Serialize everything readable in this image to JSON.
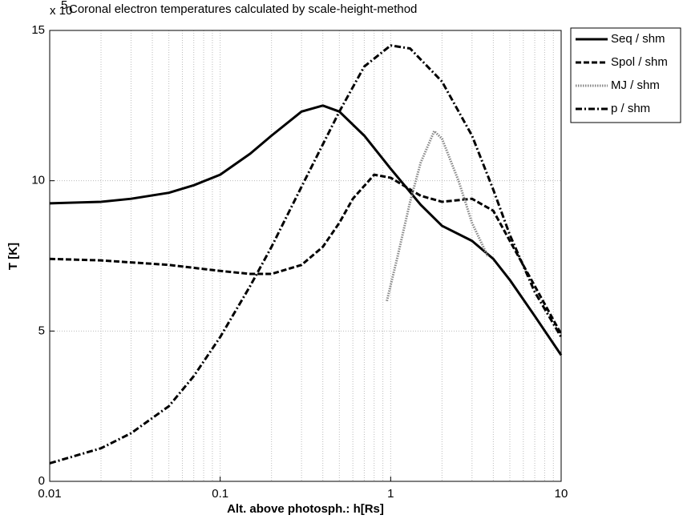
{
  "chart_data": {
    "type": "line",
    "title": "Coronal electron temperatures calculated by scale-height-method",
    "axis_multiplier": {
      "base": "x 10",
      "exponent": "5"
    },
    "xlabel": "Alt. above photosph.: h[Rs]",
    "ylabel": "T [K]",
    "xscale": "log",
    "xlim": [
      0.01,
      10
    ],
    "ylim": [
      0,
      15
    ],
    "xticks": [
      0.01,
      0.1,
      1,
      10
    ],
    "xminorticks": [
      0.02,
      0.03,
      0.04,
      0.05,
      0.06,
      0.07,
      0.08,
      0.09,
      0.2,
      0.3,
      0.4,
      0.5,
      0.6,
      0.7,
      0.8,
      0.9,
      2,
      3,
      4,
      5,
      6,
      7,
      8,
      9
    ],
    "yticks": [
      0,
      5,
      10,
      15
    ],
    "grid": true,
    "legend": "outside-right",
    "series": [
      {
        "name": "Seq / shm",
        "color": "#000000",
        "linestyle": "solid",
        "x": [
          0.01,
          0.02,
          0.03,
          0.05,
          0.07,
          0.1,
          0.15,
          0.2,
          0.3,
          0.4,
          0.5,
          0.7,
          1,
          1.5,
          2,
          3,
          4,
          5,
          7,
          10
        ],
        "values": [
          9.25,
          9.3,
          9.4,
          9.6,
          9.85,
          10.2,
          10.9,
          11.5,
          12.3,
          12.5,
          12.3,
          11.5,
          10.4,
          9.2,
          8.5,
          8.0,
          7.4,
          6.7,
          5.5,
          4.2
        ]
      },
      {
        "name": "Spol / shm",
        "color": "#000000",
        "linestyle": "dashed",
        "x": [
          0.01,
          0.02,
          0.05,
          0.1,
          0.15,
          0.2,
          0.3,
          0.4,
          0.5,
          0.6,
          0.8,
          1,
          1.5,
          2,
          3,
          4,
          5,
          7,
          10
        ],
        "values": [
          7.4,
          7.35,
          7.2,
          7.0,
          6.9,
          6.9,
          7.2,
          7.8,
          8.6,
          9.4,
          10.2,
          10.1,
          9.5,
          9.3,
          9.4,
          9.0,
          8.0,
          6.5,
          4.9
        ]
      },
      {
        "name": "MJ / shm",
        "color": "#888888",
        "linestyle": "dotted",
        "x": [
          0.95,
          1.1,
          1.3,
          1.5,
          1.8,
          2,
          2.5,
          3,
          3.7
        ],
        "values": [
          6.0,
          7.5,
          9.3,
          10.6,
          11.65,
          11.4,
          10.0,
          8.6,
          7.5
        ]
      },
      {
        "name": "p / shm",
        "color": "#000000",
        "linestyle": "dashdot",
        "x": [
          0.01,
          0.02,
          0.03,
          0.05,
          0.07,
          0.1,
          0.15,
          0.2,
          0.3,
          0.5,
          0.7,
          1,
          1.3,
          2,
          3,
          4,
          5,
          7,
          10
        ],
        "values": [
          0.6,
          1.1,
          1.6,
          2.5,
          3.5,
          4.8,
          6.5,
          7.8,
          9.8,
          12.3,
          13.8,
          14.5,
          14.4,
          13.3,
          11.5,
          9.7,
          8.2,
          6.3,
          4.8
        ]
      }
    ]
  }
}
